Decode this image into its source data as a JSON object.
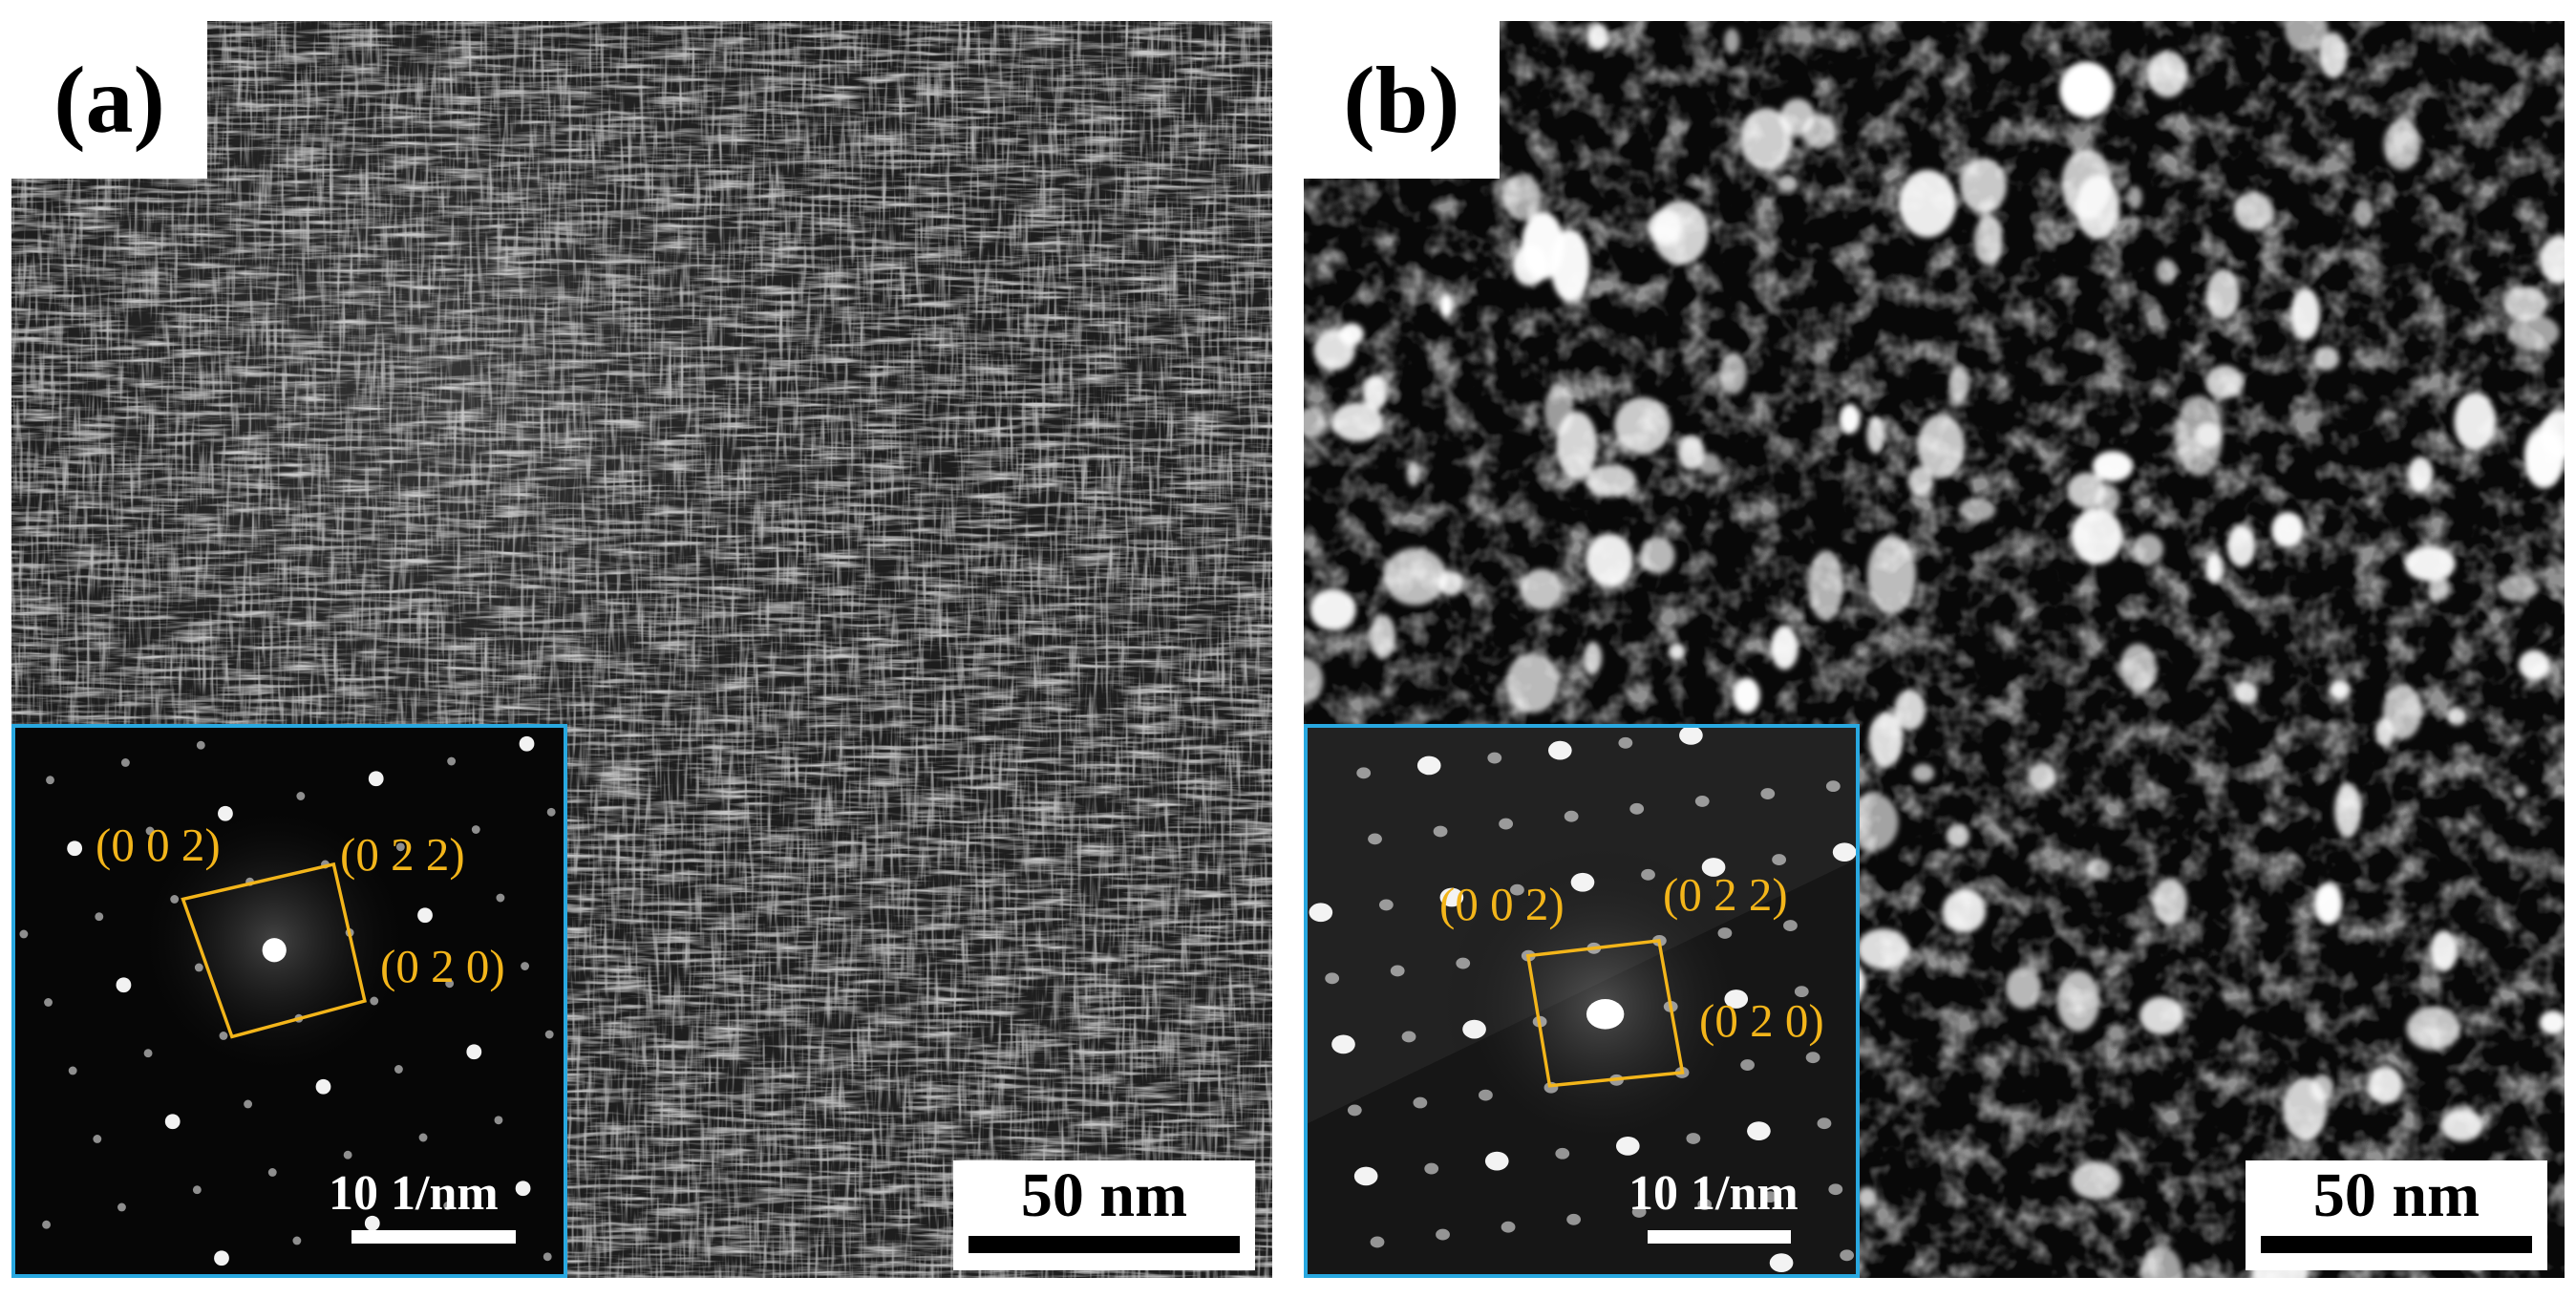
{
  "panels": [
    {
      "label": "(a)",
      "scale_bar": "50 nm",
      "inset": {
        "scale_bar": "10 1/nm",
        "miller_indices": [
          "(0 0 2)",
          "(0 2 2)",
          "(0 2 0)"
        ]
      }
    },
    {
      "label": "(b)",
      "scale_bar": "50 nm",
      "inset": {
        "scale_bar": "10 1/nm",
        "miller_indices": [
          "(0 0 2)",
          "(0 2 2)",
          "(0 2 0)"
        ]
      }
    }
  ],
  "colors": {
    "inset_border": "#29a8e0",
    "index_annotation": "#f3b51a",
    "label_background": "#ffffff"
  }
}
